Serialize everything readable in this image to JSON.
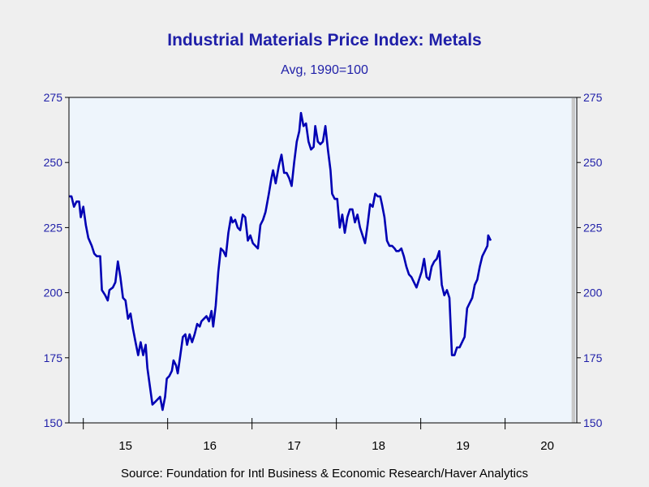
{
  "chart_data": {
    "type": "line",
    "title": "Industrial Materials Price Index: Metals",
    "subtitle": "Avg, 1990=100",
    "source": "Source:  Foundation for Intl Business & Economic Research/Haver Analytics",
    "xlabel": "",
    "ylabel": "",
    "ylim": [
      150,
      275
    ],
    "xlim": [
      2014.33,
      2020.35
    ],
    "y_ticks": [
      "150",
      "175",
      "200",
      "225",
      "250",
      "275"
    ],
    "y_tick_values": [
      150,
      175,
      200,
      225,
      250,
      275
    ],
    "x_ticks": [
      "15",
      "16",
      "17",
      "18",
      "19",
      "20"
    ],
    "x_tick_values": [
      2015.0,
      2016.0,
      2017.0,
      2018.0,
      2019.0,
      2020.0
    ],
    "x_tick_marks": [
      2014.5,
      2015.5,
      2016.5,
      2017.5,
      2018.5,
      2019.5
    ],
    "recession": {
      "start": 2020.0,
      "end": 2020.35,
      "color": "#c8c8c8"
    },
    "grid": false,
    "plot_background": "#eef5fc",
    "line_color": "#0000b4",
    "series": [
      {
        "values": [
          [
            2014.33,
            237
          ],
          [
            2014.36,
            237
          ],
          [
            2014.39,
            233
          ],
          [
            2014.42,
            235
          ],
          [
            2014.45,
            235
          ],
          [
            2014.47,
            229
          ],
          [
            2014.5,
            233
          ],
          [
            2014.53,
            226
          ],
          [
            2014.56,
            221
          ],
          [
            2014.6,
            218
          ],
          [
            2014.63,
            215
          ],
          [
            2014.66,
            214
          ],
          [
            2014.7,
            214
          ],
          [
            2014.72,
            201
          ],
          [
            2014.76,
            199
          ],
          [
            2014.79,
            197
          ],
          [
            2014.81,
            201
          ],
          [
            2014.85,
            202
          ],
          [
            2014.88,
            204
          ],
          [
            2014.91,
            212
          ],
          [
            2014.94,
            206
          ],
          [
            2014.97,
            198
          ],
          [
            2015.0,
            197
          ],
          [
            2015.03,
            190
          ],
          [
            2015.06,
            192
          ],
          [
            2015.09,
            186
          ],
          [
            2015.12,
            181
          ],
          [
            2015.15,
            176
          ],
          [
            2015.18,
            181
          ],
          [
            2015.21,
            176
          ],
          [
            2015.24,
            180
          ],
          [
            2015.26,
            171
          ],
          [
            2015.29,
            164
          ],
          [
            2015.32,
            157
          ],
          [
            2015.35,
            158
          ],
          [
            2015.38,
            159
          ],
          [
            2015.41,
            160
          ],
          [
            2015.44,
            155
          ],
          [
            2015.47,
            160
          ],
          [
            2015.49,
            167
          ],
          [
            2015.52,
            168
          ],
          [
            2015.55,
            170
          ],
          [
            2015.57,
            174
          ],
          [
            2015.6,
            172
          ],
          [
            2015.62,
            169
          ],
          [
            2015.65,
            176
          ],
          [
            2015.68,
            183
          ],
          [
            2015.71,
            184
          ],
          [
            2015.73,
            180
          ],
          [
            2015.76,
            184
          ],
          [
            2015.79,
            181
          ],
          [
            2015.82,
            184
          ],
          [
            2015.85,
            188
          ],
          [
            2015.88,
            187
          ],
          [
            2015.9,
            189
          ],
          [
            2015.93,
            190
          ],
          [
            2015.96,
            191
          ],
          [
            2015.99,
            189
          ],
          [
            2016.02,
            193
          ],
          [
            2016.04,
            187
          ],
          [
            2016.07,
            195
          ],
          [
            2016.1,
            208
          ],
          [
            2016.13,
            217
          ],
          [
            2016.16,
            216
          ],
          [
            2016.19,
            214
          ],
          [
            2016.22,
            223
          ],
          [
            2016.25,
            229
          ],
          [
            2016.27,
            227
          ],
          [
            2016.3,
            228
          ],
          [
            2016.33,
            225
          ],
          [
            2016.36,
            224
          ],
          [
            2016.39,
            230
          ],
          [
            2016.42,
            229
          ],
          [
            2016.45,
            220
          ],
          [
            2016.48,
            222
          ],
          [
            2016.51,
            219
          ],
          [
            2016.54,
            218
          ],
          [
            2016.57,
            217
          ],
          [
            2016.6,
            226
          ],
          [
            2016.63,
            228
          ],
          [
            2016.66,
            231
          ],
          [
            2016.7,
            238
          ],
          [
            2016.73,
            244
          ],
          [
            2016.75,
            247
          ],
          [
            2016.78,
            242
          ],
          [
            2016.82,
            249
          ],
          [
            2016.85,
            253
          ],
          [
            2016.88,
            246
          ],
          [
            2016.91,
            246
          ],
          [
            2016.94,
            244
          ],
          [
            2016.97,
            241
          ],
          [
            2017.0,
            250
          ],
          [
            2017.03,
            258
          ],
          [
            2017.06,
            262
          ],
          [
            2017.08,
            269
          ],
          [
            2017.11,
            264
          ],
          [
            2017.14,
            265
          ],
          [
            2017.17,
            258
          ],
          [
            2017.2,
            255
          ],
          [
            2017.23,
            256
          ],
          [
            2017.25,
            264
          ],
          [
            2017.28,
            258
          ],
          [
            2017.31,
            257
          ],
          [
            2017.34,
            258
          ],
          [
            2017.37,
            264
          ],
          [
            2017.4,
            255
          ],
          [
            2017.43,
            247
          ],
          [
            2017.45,
            238
          ],
          [
            2017.48,
            236
          ],
          [
            2017.51,
            236
          ],
          [
            2017.54,
            225
          ],
          [
            2017.57,
            230
          ],
          [
            2017.6,
            223
          ],
          [
            2017.63,
            229
          ],
          [
            2017.66,
            232
          ],
          [
            2017.69,
            232
          ],
          [
            2017.72,
            227
          ],
          [
            2017.75,
            230
          ],
          [
            2017.78,
            225
          ],
          [
            2017.81,
            222
          ],
          [
            2017.84,
            219
          ],
          [
            2017.87,
            226
          ],
          [
            2017.9,
            234
          ],
          [
            2017.93,
            233
          ],
          [
            2017.96,
            238
          ],
          [
            2017.99,
            237
          ],
          [
            2018.02,
            237
          ],
          [
            2018.04,
            234
          ],
          [
            2018.07,
            229
          ],
          [
            2018.1,
            220
          ],
          [
            2018.13,
            218
          ],
          [
            2018.16,
            218
          ],
          [
            2018.19,
            217
          ],
          [
            2018.21,
            216
          ],
          [
            2018.24,
            216
          ],
          [
            2018.27,
            217
          ],
          [
            2018.3,
            214
          ],
          [
            2018.33,
            210
          ],
          [
            2018.36,
            207
          ],
          [
            2018.39,
            206
          ],
          [
            2018.42,
            204
          ],
          [
            2018.45,
            202
          ],
          [
            2018.48,
            205
          ],
          [
            2018.51,
            208
          ],
          [
            2018.54,
            213
          ],
          [
            2018.57,
            206
          ],
          [
            2018.6,
            205
          ],
          [
            2018.63,
            210
          ],
          [
            2018.66,
            212
          ],
          [
            2018.69,
            213
          ],
          [
            2018.72,
            216
          ],
          [
            2018.75,
            203
          ],
          [
            2018.78,
            199
          ],
          [
            2018.81,
            201
          ],
          [
            2018.84,
            198
          ],
          [
            2018.87,
            176
          ],
          [
            2018.9,
            176
          ],
          [
            2018.93,
            179
          ],
          [
            2018.96,
            179
          ],
          [
            2018.99,
            181
          ],
          [
            2019.02,
            183
          ],
          [
            2019.05,
            194
          ],
          [
            2019.08,
            196
          ],
          [
            2019.11,
            198
          ],
          [
            2019.14,
            203
          ],
          [
            2019.17,
            205
          ],
          [
            2019.2,
            210
          ],
          [
            2019.23,
            214
          ],
          [
            2019.26,
            216
          ],
          [
            2019.29,
            218
          ],
          [
            2019.3,
            222
          ],
          [
            2019.33,
            220
          ]
        ]
      }
    ]
  }
}
